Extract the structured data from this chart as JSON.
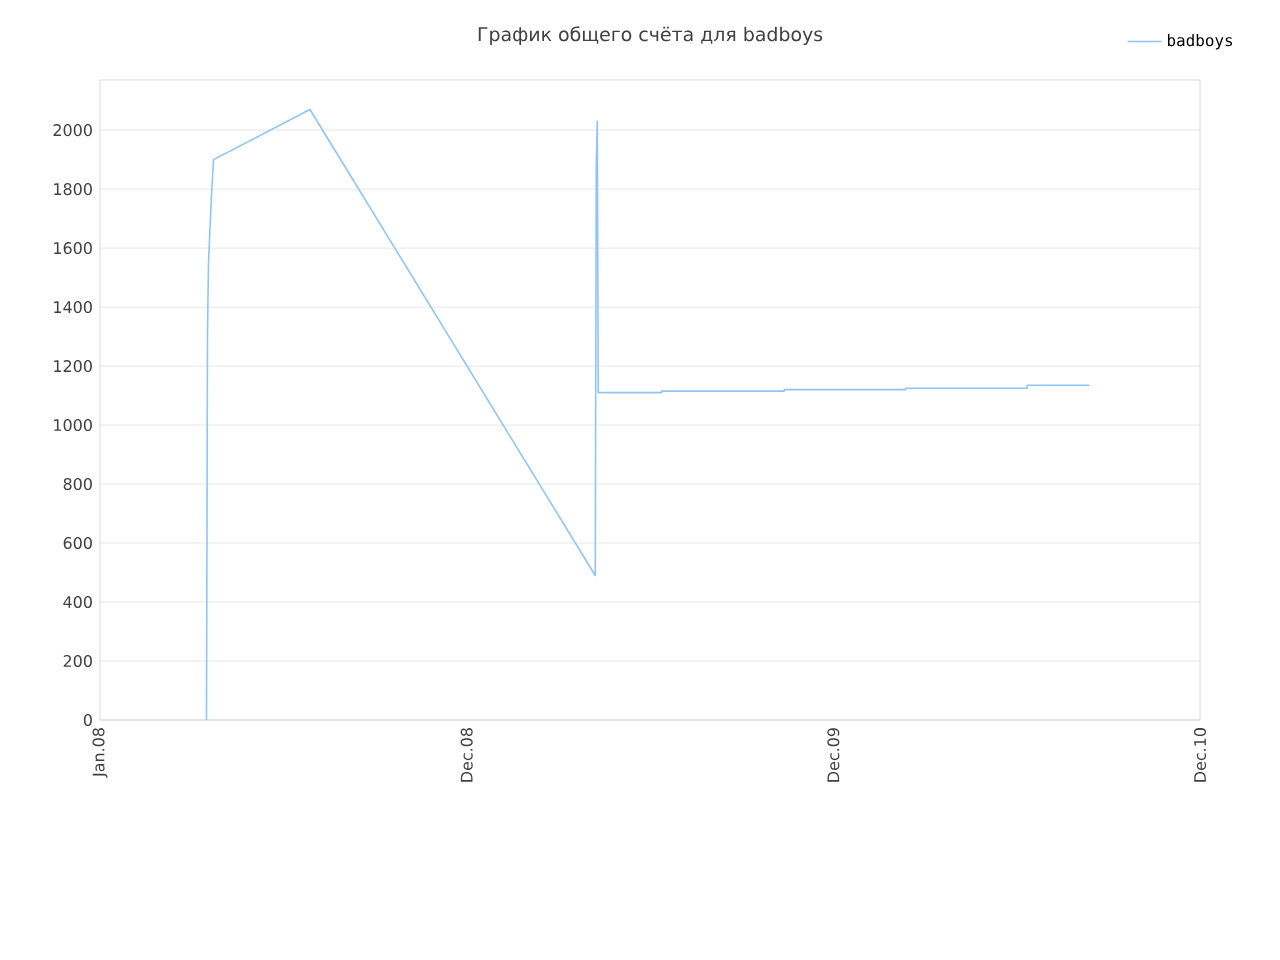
{
  "chart_data": {
    "type": "line",
    "title": "График общего счёта для badboys",
    "series": [
      {
        "name": "badboys",
        "color": "#90c4f5",
        "x": [
          "2008-04-16",
          "2008-04-17",
          "2008-04-18",
          "2008-04-21",
          "2008-04-23",
          "2008-07-28",
          "2009-05-08",
          "2009-05-09",
          "2009-05-10",
          "2009-05-11",
          "2009-07-13",
          "2009-07-13",
          "2009-11-12",
          "2009-11-12",
          "2010-03-13",
          "2010-03-13",
          "2010-07-12",
          "2010-07-12",
          "2010-09-12"
        ],
        "values": [
          0,
          1310,
          1550,
          1780,
          1900,
          2070,
          490,
          1880,
          2030,
          1110,
          1110,
          1115,
          1115,
          1120,
          1120,
          1125,
          1125,
          1135,
          1135
        ]
      }
    ],
    "xlim": [
      "2008-01-01",
      "2010-12-31"
    ],
    "xticks": [
      {
        "value": "2008-01-01",
        "label": "Jan.08"
      },
      {
        "value": "2008-12-31",
        "label": "Dec.08"
      },
      {
        "value": "2009-12-31",
        "label": "Dec.09"
      },
      {
        "value": "2010-12-31",
        "label": "Dec.10"
      }
    ],
    "ylim": [
      0,
      2170
    ],
    "yticks": [
      0,
      200,
      400,
      600,
      800,
      1000,
      1200,
      1400,
      1600,
      1800,
      2000
    ],
    "grid": "y",
    "legend": "top right",
    "line_style": "solid",
    "marker": "none"
  }
}
